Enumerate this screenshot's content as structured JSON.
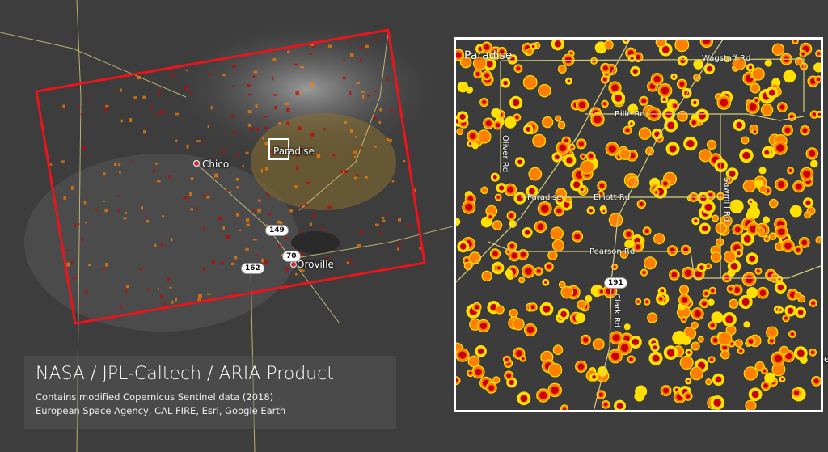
{
  "overview": {
    "labels": {
      "chico": "Chico",
      "paradise": "Paradise",
      "oroville": "Oroville",
      "kee": "kee"
    },
    "shields": {
      "hwy149": "149",
      "hwy162": "162",
      "hwy70": "70"
    },
    "colors": {
      "aoi_outline": "#e8161c",
      "roads": "#d8cf7a",
      "damage_high": "#c80000",
      "damage_med": "#ff8000",
      "damage_low": "#ffe000"
    }
  },
  "inset": {
    "title": "Paradise",
    "roads": {
      "wagstaff": "Wagstaff Rd",
      "bille": "Bille Rd",
      "oliver": "Oliver Rd",
      "paradise": "Paradise",
      "elliott": "Elliott Rd",
      "sawmill": "Sawmill Rd",
      "pearson": "Pearson Rd",
      "clark": "Clark Rd"
    },
    "shield": "191"
  },
  "credit": {
    "title": "NASA / JPL-Caltech / ARIA Product",
    "line1": "Contains modified Copernicus Sentinel data (2018)",
    "line2": "European Space Agency, CAL FIRE, Esri, Google Earth"
  }
}
